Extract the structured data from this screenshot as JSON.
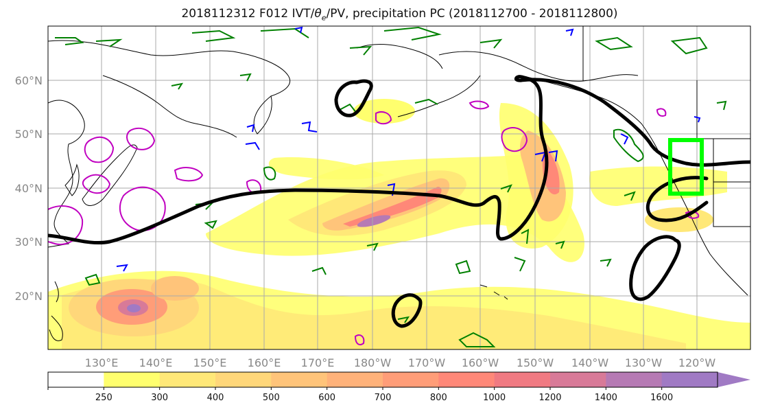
{
  "title": {
    "prefix": "2018112312 F012 IVT/",
    "theta": "θ",
    "theta_sub": "e",
    "suffix": "/PV, precipitation PC (2018112700 - 2018112800)"
  },
  "lat_labels": [
    "20°N",
    "30°N",
    "40°N",
    "50°N",
    "60°N"
  ],
  "lon_labels": [
    "130°E",
    "140°E",
    "150°E",
    "160°E",
    "170°E",
    "180°W",
    "170°W",
    "160°W",
    "150°W",
    "140°W",
    "130°W",
    "120°W"
  ],
  "colorbar": {
    "ticks": [
      "250",
      "300",
      "400",
      "500",
      "600",
      "700",
      "800",
      "1000",
      "1200",
      "1400",
      "1600"
    ],
    "colors": [
      "#ffffff",
      "#ffff6e",
      "#ffe878",
      "#ffd77a",
      "#ffc47a",
      "#ffb27a",
      "#ff9d78",
      "#ff8878",
      "#f07a82",
      "#d87a98",
      "#b67ab4",
      "#a07ac4"
    ]
  },
  "colors": {
    "theta_e_contour": "#000000",
    "pv_green": "#008000",
    "pv_magenta": "#c000c0",
    "pv_blue": "#0000ff",
    "highlight_box": "#00ff00",
    "coastline": "#000000",
    "grid": "#aaaaaa"
  }
}
